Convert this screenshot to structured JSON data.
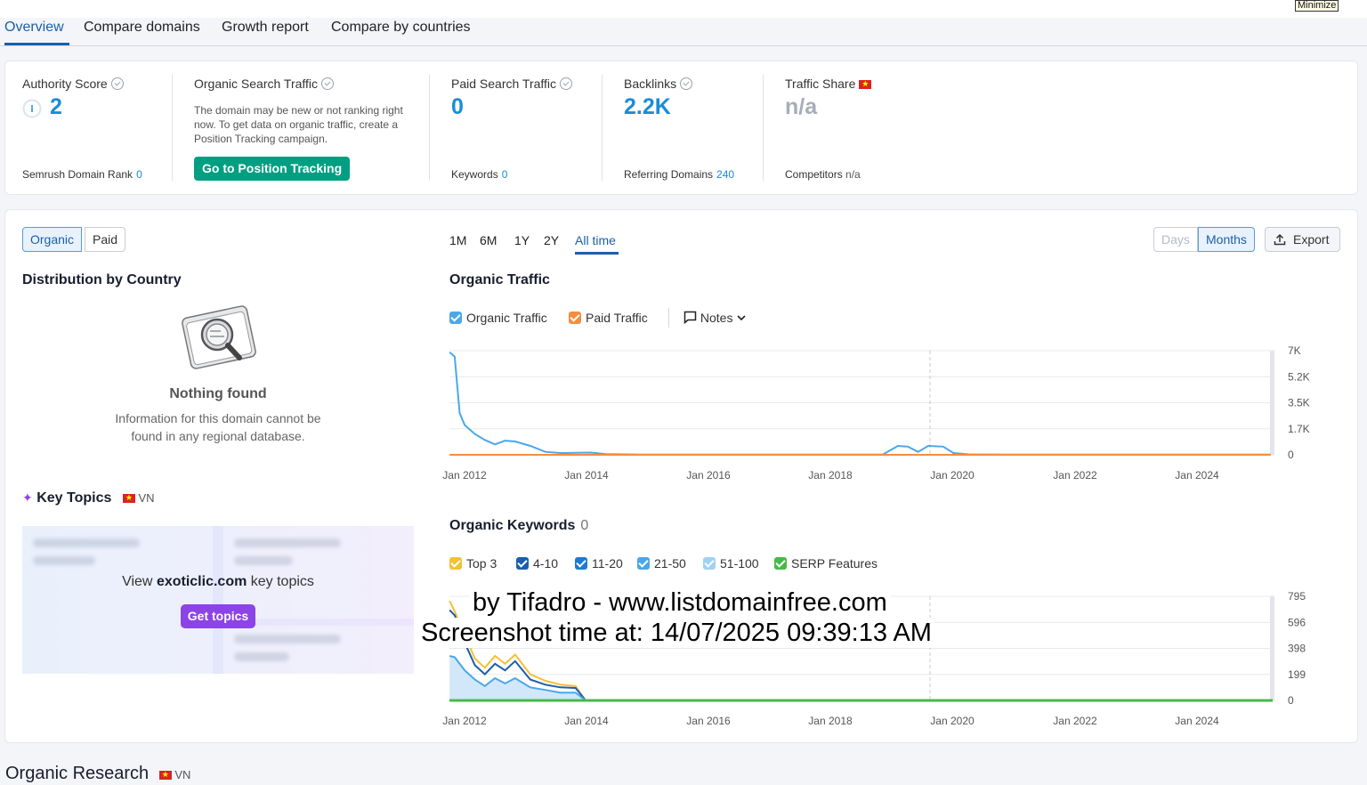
{
  "window": {
    "minimize_label": "Minimize"
  },
  "tabs": [
    {
      "label": "Overview",
      "active": true
    },
    {
      "label": "Compare domains"
    },
    {
      "label": "Growth report"
    },
    {
      "label": "Compare by countries"
    }
  ],
  "summary": {
    "authority": {
      "label": "Authority Score",
      "value": "2",
      "rank_label": "Semrush Domain Rank",
      "rank_value": "0"
    },
    "organic": {
      "label": "Organic Search Traffic",
      "description": "The domain may be new or not ranking right now. To get data on organic traffic, create a Position Tracking campaign.",
      "button": "Go to Position Tracking"
    },
    "paid": {
      "label": "Paid Search Traffic",
      "value": "0",
      "keywords_label": "Keywords",
      "keywords_value": "0"
    },
    "backlinks": {
      "label": "Backlinks",
      "value": "2.2K",
      "ref_label": "Referring Domains",
      "ref_value": "240"
    },
    "share": {
      "label": "Traffic Share",
      "value": "n/a",
      "competitors_label": "Competitors",
      "competitors_value": "n/a"
    }
  },
  "toggle": {
    "organic": "Organic",
    "paid": "Paid"
  },
  "ranges": [
    "1M",
    "6M",
    "1Y",
    "2Y",
    "All time"
  ],
  "granularity": {
    "days": "Days",
    "months": "Months"
  },
  "export_label": "Export",
  "distribution": {
    "title": "Distribution by Country",
    "empty_title": "Nothing found",
    "empty_text": "Information for this domain cannot be found in any regional database."
  },
  "key_topics": {
    "title": "Key Topics",
    "country": "VN",
    "view_prefix": "View",
    "domain": "exoticlic.com",
    "view_suffix": "key topics",
    "button": "Get topics"
  },
  "traffic_chart": {
    "title": "Organic Traffic",
    "legend": {
      "organic": "Organic Traffic",
      "paid": "Paid Traffic",
      "notes": "Notes"
    },
    "colors": {
      "organic": "#4aa8ea",
      "paid": "#f58d3f"
    }
  },
  "keywords_chart": {
    "title": "Organic Keywords",
    "count": "0",
    "legend": [
      "Top 3",
      "4-10",
      "11-20",
      "21-50",
      "51-100",
      "SERP Features"
    ],
    "legend_colors": [
      "#f5c035",
      "#1a5fab",
      "#1a7bd6",
      "#49a6ec",
      "#9ed2f7",
      "#48b948"
    ]
  },
  "chart_data": [
    {
      "type": "line",
      "title": "Organic Traffic",
      "x_ticks": [
        "Jan 2012",
        "Jan 2014",
        "Jan 2016",
        "Jan 2018",
        "Jan 2020",
        "Jan 2022",
        "Jan 2024"
      ],
      "y_ticks": [
        "7K",
        "5.2K",
        "3.5K",
        "1.7K",
        "0"
      ],
      "ylim": [
        0,
        7000
      ],
      "grid": true,
      "series": [
        {
          "name": "Organic Traffic",
          "x": [
            "2011-11",
            "2011-12",
            "2012-01",
            "2012-02",
            "2012-03",
            "2012-04",
            "2012-06",
            "2012-08",
            "2012-10",
            "2012-12",
            "2013-03",
            "2013-06",
            "2013-09",
            "2013-12",
            "2014-03",
            "2014-06",
            "2015-01",
            "2016-01",
            "2017-01",
            "2018-01",
            "2019-01",
            "2019-04",
            "2019-06",
            "2019-08",
            "2019-10",
            "2020-01",
            "2020-03",
            "2020-06",
            "2021-01",
            "2022-01",
            "2023-01",
            "2024-01",
            "2025-06"
          ],
          "values": [
            6900,
            6600,
            2800,
            2000,
            1700,
            1400,
            1000,
            700,
            950,
            900,
            600,
            200,
            120,
            130,
            150,
            50,
            20,
            10,
            10,
            10,
            15,
            600,
            550,
            200,
            600,
            550,
            120,
            30,
            15,
            10,
            10,
            10,
            10
          ]
        },
        {
          "name": "Paid Traffic",
          "x": [
            "2011-11",
            "2025-06"
          ],
          "values": [
            0,
            0
          ]
        }
      ]
    },
    {
      "type": "area",
      "title": "Organic Keywords",
      "x_ticks": [
        "Jan 2012",
        "Jan 2014",
        "Jan 2016",
        "Jan 2018",
        "Jan 2020",
        "Jan 2022",
        "Jan 2024"
      ],
      "y_ticks": [
        "795",
        "596",
        "398",
        "199",
        "0"
      ],
      "ylim": [
        0,
        795
      ],
      "grid": true,
      "series": [
        {
          "name": "Top 3",
          "x": [
            "2011-11",
            "2011-12",
            "2012-02",
            "2012-04",
            "2012-06",
            "2012-08",
            "2012-10",
            "2012-12",
            "2013-03",
            "2013-06",
            "2013-09",
            "2013-12",
            "2014-02",
            "2025-06"
          ],
          "values": [
            760,
            680,
            500,
            320,
            250,
            340,
            280,
            350,
            200,
            150,
            120,
            110,
            0,
            0
          ]
        },
        {
          "name": "4-10",
          "x": [
            "2011-11",
            "2011-12",
            "2012-02",
            "2012-04",
            "2012-06",
            "2012-08",
            "2012-10",
            "2012-12",
            "2013-03",
            "2013-06",
            "2013-09",
            "2013-12",
            "2014-02",
            "2025-06"
          ],
          "values": [
            690,
            650,
            440,
            270,
            200,
            280,
            230,
            300,
            160,
            120,
            100,
            95,
            0,
            0
          ]
        },
        {
          "name": "11-20",
          "x": [
            "2011-11",
            "2011-12",
            "2012-02",
            "2012-04",
            "2012-06",
            "2012-08",
            "2012-10",
            "2012-12",
            "2013-03",
            "2013-06",
            "2013-09",
            "2013-12",
            "2014-02",
            "2025-06"
          ],
          "values": [
            340,
            330,
            230,
            160,
            110,
            170,
            130,
            170,
            100,
            80,
            60,
            60,
            0,
            0
          ]
        }
      ]
    }
  ],
  "overlay": {
    "line1": "by Tifadro - www.listdomainfree.com",
    "line2": "Screenshot time at: 14/07/2025 09:39:13 AM"
  },
  "organic_research": {
    "title": "Organic Research",
    "country": "VN"
  }
}
